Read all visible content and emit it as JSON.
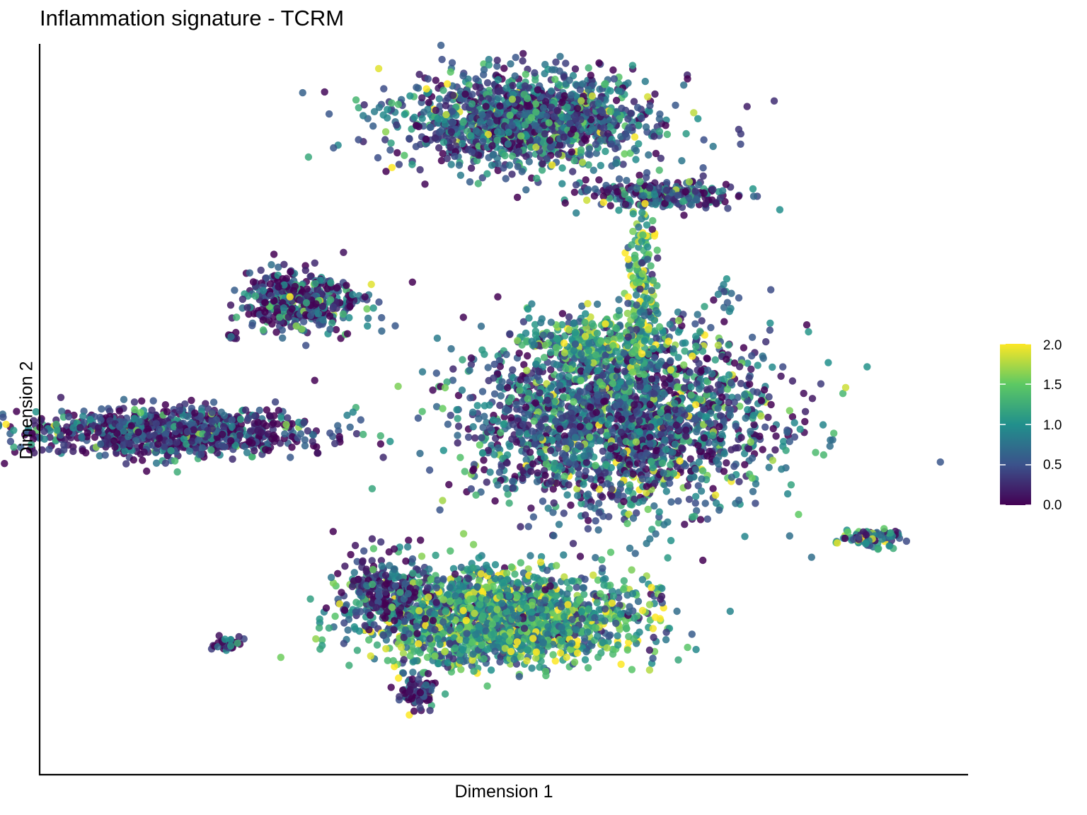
{
  "chart_data": {
    "type": "scatter",
    "title": "Inflammation signature - TCRM",
    "xlabel": "Dimension 1",
    "ylabel": "Dimension 2",
    "grid": false,
    "legend_placement": "right",
    "colorbar": {
      "palette": "viridis",
      "colors": [
        "#440154",
        "#3b528b",
        "#21908c",
        "#5dc963",
        "#fde725"
      ],
      "range": [
        0.0,
        2.0
      ],
      "ticks": [
        "0.0",
        "0.5",
        "1.0",
        "1.5",
        "2.0"
      ]
    },
    "xlim": [
      -10,
      10
    ],
    "ylim": [
      -10,
      10
    ],
    "clusters": [
      {
        "name": "",
        "cx": 0.55,
        "cy": 8.2,
        "sx": 1.9,
        "sy": 0.9,
        "n": 1400,
        "mean_value": 0.55
      },
      {
        "name": "",
        "cx": 3.5,
        "cy": 6.1,
        "sx": 1.1,
        "sy": 0.25,
        "n": 260,
        "mean_value": 0.45
      },
      {
        "name": "",
        "cx": 3.1,
        "cy": 3.9,
        "sx": 0.25,
        "sy": 1.1,
        "n": 140,
        "mean_value": 1.3
      },
      {
        "name": "",
        "cx": 2.6,
        "cy": -0.3,
        "sx": 2.2,
        "sy": 1.7,
        "n": 2200,
        "mean_value": 0.55
      },
      {
        "name": "",
        "cx": 2.3,
        "cy": 1.9,
        "sx": 1.1,
        "sy": 0.6,
        "n": 300,
        "mean_value": 1.1
      },
      {
        "name": "",
        "cx": -4.4,
        "cy": 3.1,
        "sx": 0.85,
        "sy": 0.55,
        "n": 450,
        "mean_value": 0.35
      },
      {
        "name": "",
        "cx": -6.0,
        "cy": 2.1,
        "sx": 0.08,
        "sy": 0.08,
        "n": 10,
        "mean_value": 0.2
      },
      {
        "name": "",
        "cx": -7.3,
        "cy": -0.6,
        "sx": 2.2,
        "sy": 0.45,
        "n": 900,
        "mean_value": 0.3
      },
      {
        "name": "",
        "cx": -0.05,
        "cy": -5.9,
        "sx": 1.9,
        "sy": 0.85,
        "n": 1900,
        "mean_value": 1.05
      },
      {
        "name": "",
        "cx": -2.5,
        "cy": -5.1,
        "sx": 0.7,
        "sy": 0.7,
        "n": 260,
        "mean_value": 0.35
      },
      {
        "name": "",
        "cx": -1.9,
        "cy": -8.0,
        "sx": 0.3,
        "sy": 0.3,
        "n": 80,
        "mean_value": 0.15
      },
      {
        "name": "",
        "cx": -6.1,
        "cy": -6.6,
        "sx": 0.2,
        "sy": 0.12,
        "n": 40,
        "mean_value": 0.2
      },
      {
        "name": "",
        "cx": 8.1,
        "cy": -3.6,
        "sx": 0.45,
        "sy": 0.18,
        "n": 90,
        "mean_value": 0.7
      },
      {
        "name": "",
        "cx": 4.9,
        "cy": 3.3,
        "sx": 0.1,
        "sy": 0.25,
        "n": 8,
        "mean_value": 0.8
      }
    ]
  }
}
